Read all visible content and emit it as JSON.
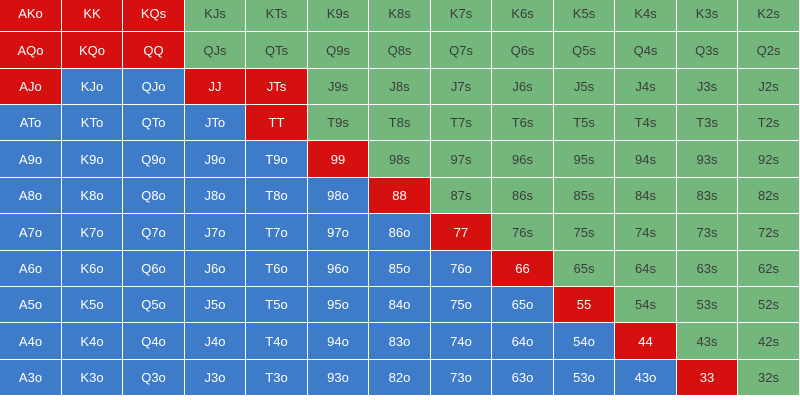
{
  "colors": {
    "red": "#d60f0f",
    "green": "#73b77c",
    "blue": "#3e7bc8"
  },
  "rows": [
    {
      "cells": [
        {
          "label": "AKo",
          "color": "red"
        },
        {
          "label": "KK",
          "color": "red"
        },
        {
          "label": "KQs",
          "color": "red"
        },
        {
          "label": "KJs",
          "color": "green"
        },
        {
          "label": "KTs",
          "color": "green"
        },
        {
          "label": "K9s",
          "color": "green"
        },
        {
          "label": "K8s",
          "color": "green"
        },
        {
          "label": "K7s",
          "color": "green"
        },
        {
          "label": "K6s",
          "color": "green"
        },
        {
          "label": "K5s",
          "color": "green"
        },
        {
          "label": "K4s",
          "color": "green"
        },
        {
          "label": "K3s",
          "color": "green"
        },
        {
          "label": "K2s",
          "color": "green"
        }
      ]
    },
    {
      "cells": [
        {
          "label": "AQo",
          "color": "red"
        },
        {
          "label": "KQo",
          "color": "red"
        },
        {
          "label": "QQ",
          "color": "red"
        },
        {
          "label": "QJs",
          "color": "green"
        },
        {
          "label": "QTs",
          "color": "green"
        },
        {
          "label": "Q9s",
          "color": "green"
        },
        {
          "label": "Q8s",
          "color": "green"
        },
        {
          "label": "Q7s",
          "color": "green"
        },
        {
          "label": "Q6s",
          "color": "green"
        },
        {
          "label": "Q5s",
          "color": "green"
        },
        {
          "label": "Q4s",
          "color": "green"
        },
        {
          "label": "Q3s",
          "color": "green"
        },
        {
          "label": "Q2s",
          "color": "green"
        }
      ]
    },
    {
      "cells": [
        {
          "label": "AJo",
          "color": "red"
        },
        {
          "label": "KJo",
          "color": "blue"
        },
        {
          "label": "QJo",
          "color": "blue"
        },
        {
          "label": "JJ",
          "color": "red"
        },
        {
          "label": "JTs",
          "color": "red"
        },
        {
          "label": "J9s",
          "color": "green"
        },
        {
          "label": "J8s",
          "color": "green"
        },
        {
          "label": "J7s",
          "color": "green"
        },
        {
          "label": "J6s",
          "color": "green"
        },
        {
          "label": "J5s",
          "color": "green"
        },
        {
          "label": "J4s",
          "color": "green"
        },
        {
          "label": "J3s",
          "color": "green"
        },
        {
          "label": "J2s",
          "color": "green"
        }
      ]
    },
    {
      "cells": [
        {
          "label": "ATo",
          "color": "blue"
        },
        {
          "label": "KTo",
          "color": "blue"
        },
        {
          "label": "QTo",
          "color": "blue"
        },
        {
          "label": "JTo",
          "color": "blue"
        },
        {
          "label": "TT",
          "color": "red"
        },
        {
          "label": "T9s",
          "color": "green"
        },
        {
          "label": "T8s",
          "color": "green"
        },
        {
          "label": "T7s",
          "color": "green"
        },
        {
          "label": "T6s",
          "color": "green"
        },
        {
          "label": "T5s",
          "color": "green"
        },
        {
          "label": "T4s",
          "color": "green"
        },
        {
          "label": "T3s",
          "color": "green"
        },
        {
          "label": "T2s",
          "color": "green"
        }
      ]
    },
    {
      "cells": [
        {
          "label": "A9o",
          "color": "blue"
        },
        {
          "label": "K9o",
          "color": "blue"
        },
        {
          "label": "Q9o",
          "color": "blue"
        },
        {
          "label": "J9o",
          "color": "blue"
        },
        {
          "label": "T9o",
          "color": "blue"
        },
        {
          "label": "99",
          "color": "red"
        },
        {
          "label": "98s",
          "color": "green"
        },
        {
          "label": "97s",
          "color": "green"
        },
        {
          "label": "96s",
          "color": "green"
        },
        {
          "label": "95s",
          "color": "green"
        },
        {
          "label": "94s",
          "color": "green"
        },
        {
          "label": "93s",
          "color": "green"
        },
        {
          "label": "92s",
          "color": "green"
        }
      ]
    },
    {
      "cells": [
        {
          "label": "A8o",
          "color": "blue"
        },
        {
          "label": "K8o",
          "color": "blue"
        },
        {
          "label": "Q8o",
          "color": "blue"
        },
        {
          "label": "J8o",
          "color": "blue"
        },
        {
          "label": "T8o",
          "color": "blue"
        },
        {
          "label": "98o",
          "color": "blue"
        },
        {
          "label": "88",
          "color": "red"
        },
        {
          "label": "87s",
          "color": "green"
        },
        {
          "label": "86s",
          "color": "green"
        },
        {
          "label": "85s",
          "color": "green"
        },
        {
          "label": "84s",
          "color": "green"
        },
        {
          "label": "83s",
          "color": "green"
        },
        {
          "label": "82s",
          "color": "green"
        }
      ]
    },
    {
      "cells": [
        {
          "label": "A7o",
          "color": "blue"
        },
        {
          "label": "K7o",
          "color": "blue"
        },
        {
          "label": "Q7o",
          "color": "blue"
        },
        {
          "label": "J7o",
          "color": "blue"
        },
        {
          "label": "T7o",
          "color": "blue"
        },
        {
          "label": "97o",
          "color": "blue"
        },
        {
          "label": "86o",
          "color": "blue"
        },
        {
          "label": "77",
          "color": "red"
        },
        {
          "label": "76s",
          "color": "green"
        },
        {
          "label": "75s",
          "color": "green"
        },
        {
          "label": "74s",
          "color": "green"
        },
        {
          "label": "73s",
          "color": "green"
        },
        {
          "label": "72s",
          "color": "green"
        }
      ]
    },
    {
      "cells": [
        {
          "label": "A6o",
          "color": "blue"
        },
        {
          "label": "K6o",
          "color": "blue"
        },
        {
          "label": "Q6o",
          "color": "blue"
        },
        {
          "label": "J6o",
          "color": "blue"
        },
        {
          "label": "T6o",
          "color": "blue"
        },
        {
          "label": "96o",
          "color": "blue"
        },
        {
          "label": "85o",
          "color": "blue"
        },
        {
          "label": "76o",
          "color": "blue"
        },
        {
          "label": "66",
          "color": "red"
        },
        {
          "label": "65s",
          "color": "green"
        },
        {
          "label": "64s",
          "color": "green"
        },
        {
          "label": "63s",
          "color": "green"
        },
        {
          "label": "62s",
          "color": "green"
        }
      ]
    },
    {
      "cells": [
        {
          "label": "A5o",
          "color": "blue"
        },
        {
          "label": "K5o",
          "color": "blue"
        },
        {
          "label": "Q5o",
          "color": "blue"
        },
        {
          "label": "J5o",
          "color": "blue"
        },
        {
          "label": "T5o",
          "color": "blue"
        },
        {
          "label": "95o",
          "color": "blue"
        },
        {
          "label": "84o",
          "color": "blue"
        },
        {
          "label": "75o",
          "color": "blue"
        },
        {
          "label": "65o",
          "color": "blue"
        },
        {
          "label": "55",
          "color": "red"
        },
        {
          "label": "54s",
          "color": "green"
        },
        {
          "label": "53s",
          "color": "green"
        },
        {
          "label": "52s",
          "color": "green"
        }
      ]
    },
    {
      "cells": [
        {
          "label": "A4o",
          "color": "blue"
        },
        {
          "label": "K4o",
          "color": "blue"
        },
        {
          "label": "Q4o",
          "color": "blue"
        },
        {
          "label": "J4o",
          "color": "blue"
        },
        {
          "label": "T4o",
          "color": "blue"
        },
        {
          "label": "94o",
          "color": "blue"
        },
        {
          "label": "83o",
          "color": "blue"
        },
        {
          "label": "74o",
          "color": "blue"
        },
        {
          "label": "64o",
          "color": "blue"
        },
        {
          "label": "54o",
          "color": "blue"
        },
        {
          "label": "44",
          "color": "red"
        },
        {
          "label": "43s",
          "color": "green"
        },
        {
          "label": "42s",
          "color": "green"
        }
      ]
    },
    {
      "cells": [
        {
          "label": "A3o",
          "color": "blue"
        },
        {
          "label": "K3o",
          "color": "blue"
        },
        {
          "label": "Q3o",
          "color": "blue"
        },
        {
          "label": "J3o",
          "color": "blue"
        },
        {
          "label": "T3o",
          "color": "blue"
        },
        {
          "label": "93o",
          "color": "blue"
        },
        {
          "label": "82o",
          "color": "blue"
        },
        {
          "label": "73o",
          "color": "blue"
        },
        {
          "label": "63o",
          "color": "blue"
        },
        {
          "label": "53o",
          "color": "blue"
        },
        {
          "label": "43o",
          "color": "blue"
        },
        {
          "label": "33",
          "color": "red"
        },
        {
          "label": "32s",
          "color": "green"
        }
      ]
    }
  ]
}
